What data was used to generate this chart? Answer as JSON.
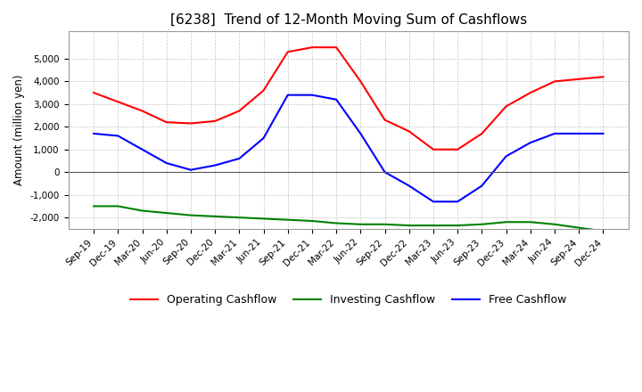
{
  "title": "[6238]  Trend of 12-Month Moving Sum of Cashflows",
  "ylabel": "Amount (million yen)",
  "x_labels": [
    "Sep-19",
    "Dec-19",
    "Mar-20",
    "Jun-20",
    "Sep-20",
    "Dec-20",
    "Mar-21",
    "Jun-21",
    "Sep-21",
    "Dec-21",
    "Mar-22",
    "Jun-22",
    "Sep-22",
    "Dec-22",
    "Mar-23",
    "Jun-23",
    "Sep-23",
    "Dec-23",
    "Mar-24",
    "Jun-24",
    "Sep-24",
    "Dec-24"
  ],
  "operating": [
    3500,
    3100,
    2700,
    2200,
    2150,
    2250,
    2700,
    3600,
    5300,
    5500,
    5500,
    4000,
    2300,
    1800,
    1000,
    1000,
    1700,
    2900,
    3500,
    4000,
    4100,
    4200
  ],
  "investing": [
    -1500,
    -1500,
    -1700,
    -1800,
    -1900,
    -1950,
    -2000,
    -2050,
    -2100,
    -2150,
    -2250,
    -2300,
    -2300,
    -2350,
    -2350,
    -2350,
    -2300,
    -2200,
    -2200,
    -2300,
    -2450,
    -2600
  ],
  "free": [
    1700,
    1600,
    1000,
    400,
    100,
    300,
    600,
    1500,
    3400,
    3400,
    3200,
    1700,
    0,
    -600,
    -1300,
    -1300,
    -600,
    700,
    1300,
    1700,
    1700,
    1700
  ],
  "ylim": [
    -2500,
    6200
  ],
  "yticks": [
    -2000,
    -1000,
    0,
    1000,
    2000,
    3000,
    4000,
    5000
  ],
  "operating_color": "#FF0000",
  "investing_color": "#008000",
  "free_color": "#0000FF",
  "background_color": "#FFFFFF",
  "plot_bg_color": "#FFFFFF",
  "grid_color": "#AAAAAA",
  "title_fontsize": 11,
  "legend_labels": [
    "Operating Cashflow",
    "Investing Cashflow",
    "Free Cashflow"
  ]
}
